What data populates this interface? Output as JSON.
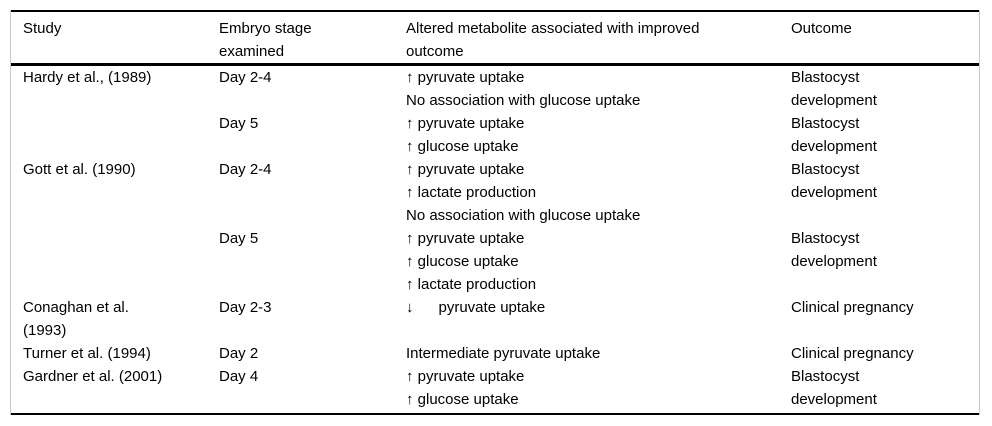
{
  "colors": {
    "text": "#000000",
    "rule": "#000000",
    "frame": "#c9c9c9",
    "background": "#ffffff"
  },
  "table": {
    "header": {
      "study_lines": [
        "Study"
      ],
      "stage_lines": [
        "Embryo stage",
        "examined"
      ],
      "metabolite_lines": [
        "Altered metabolite associated with improved",
        "outcome"
      ],
      "outcome_lines": [
        "Outcome"
      ]
    },
    "rows": [
      {
        "study_lines": [
          "Hardy et al., (1989)"
        ],
        "stage_lines": [
          "Day 2-4"
        ],
        "metabolite_lines": [
          "↑ pyruvate uptake",
          "No association with glucose uptake"
        ],
        "outcome_lines": [
          "Blastocyst",
          "development"
        ]
      },
      {
        "study_lines": [],
        "stage_lines": [
          "Day 5"
        ],
        "metabolite_lines": [
          "↑ pyruvate uptake",
          "↑ glucose uptake"
        ],
        "outcome_lines": [
          "Blastocyst",
          "development"
        ]
      },
      {
        "study_lines": [
          "Gott et al. (1990)"
        ],
        "stage_lines": [
          "Day 2-4"
        ],
        "metabolite_lines": [
          "↑ pyruvate uptake",
          "↑ lactate production",
          "No association with glucose uptake"
        ],
        "outcome_lines": [
          "Blastocyst",
          "development"
        ]
      },
      {
        "study_lines": [],
        "stage_lines": [
          "Day 5"
        ],
        "metabolite_lines": [
          "↑ pyruvate uptake",
          "↑ glucose uptake",
          "↑ lactate production"
        ],
        "outcome_lines": [
          "Blastocyst",
          "development"
        ]
      },
      {
        "study_lines": [
          "Conaghan et al.",
          "(1993)"
        ],
        "stage_lines": [
          "Day 2-3"
        ],
        "metabolite_lines": [
          "↓      pyruvate uptake"
        ],
        "outcome_lines": [
          "Clinical pregnancy"
        ]
      },
      {
        "study_lines": [
          "Turner et al. (1994)"
        ],
        "stage_lines": [
          "Day 2"
        ],
        "metabolite_lines": [
          "Intermediate pyruvate uptake"
        ],
        "outcome_lines": [
          "Clinical pregnancy"
        ]
      },
      {
        "study_lines": [
          "Gardner et al. (2001)"
        ],
        "stage_lines": [
          "Day 4"
        ],
        "metabolite_lines": [
          "↑ pyruvate uptake",
          "↑ glucose uptake"
        ],
        "outcome_lines": [
          "Blastocyst",
          "development"
        ]
      }
    ]
  }
}
